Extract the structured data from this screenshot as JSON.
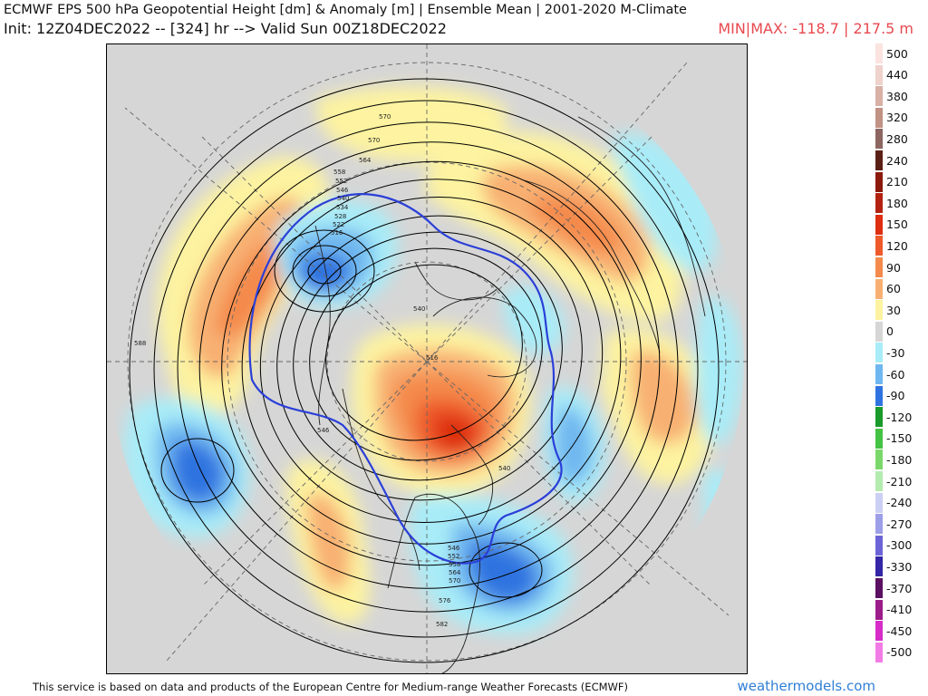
{
  "header": {
    "title": "ECMWF EPS 500 hPa Geopotential Height [dm] & Anomaly [m] | Ensemble Mean | 2001-2020 M-Climate",
    "init": "Init: 12Z04DEC2022 -- [324] hr --> Valid Sun 00Z18DEC2022",
    "minmax": "MIN|MAX: -118.7 | 217.5 m"
  },
  "colors": {
    "minmax": "#e8484f",
    "brand": "#2f7fd6",
    "land_background": "#d6d6d6",
    "height_contour": "#000000",
    "highlight_contour": "#2a3fd8"
  },
  "map": {
    "contour_labels": [
      "570",
      "570",
      "564",
      "558",
      "552",
      "546",
      "540",
      "534",
      "528",
      "522",
      "516",
      "588",
      "540",
      "516",
      "546",
      "540",
      "546",
      "552",
      "558",
      "564",
      "570",
      "576",
      "582"
    ]
  },
  "legend": {
    "entries": [
      {
        "label": "500",
        "color": "#fbe3e0"
      },
      {
        "label": "440",
        "color": "#eed2cb"
      },
      {
        "label": "380",
        "color": "#d9b0a5"
      },
      {
        "label": "320",
        "color": "#c19184"
      },
      {
        "label": "280",
        "color": "#8c6660"
      },
      {
        "label": "240",
        "color": "#5a2015"
      },
      {
        "label": "210",
        "color": "#8c1a0c"
      },
      {
        "label": "180",
        "color": "#b32210"
      },
      {
        "label": "150",
        "color": "#dd2e10"
      },
      {
        "label": "120",
        "color": "#ee5a2a"
      },
      {
        "label": "90",
        "color": "#f48a4c"
      },
      {
        "label": "60",
        "color": "#f8b072"
      },
      {
        "label": "30",
        "color": "#fdf3a0"
      },
      {
        "label": "0",
        "color": "#d6d6d6"
      },
      {
        "label": "-30",
        "color": "#a8ecf8"
      },
      {
        "label": "-60",
        "color": "#6fb7f0"
      },
      {
        "label": "-90",
        "color": "#2f73e0"
      },
      {
        "label": "-120",
        "color": "#1a9a2a"
      },
      {
        "label": "-150",
        "color": "#44c244"
      },
      {
        "label": "-180",
        "color": "#7ad86a"
      },
      {
        "label": "-210",
        "color": "#b4ecb0"
      },
      {
        "label": "-240",
        "color": "#cccff4"
      },
      {
        "label": "-270",
        "color": "#9d9ee8"
      },
      {
        "label": "-300",
        "color": "#6c64d6"
      },
      {
        "label": "-330",
        "color": "#3426a6"
      },
      {
        "label": "-370",
        "color": "#5b1062"
      },
      {
        "label": "-410",
        "color": "#9c1c8a"
      },
      {
        "label": "-450",
        "color": "#d62cc8"
      },
      {
        "label": "-500",
        "color": "#f27ce6"
      }
    ]
  },
  "footer": {
    "note": "This service is based on data and products of the European Centre for Medium-range Weather Forecasts (ECMWF)",
    "brand": "weathermodels.com"
  }
}
